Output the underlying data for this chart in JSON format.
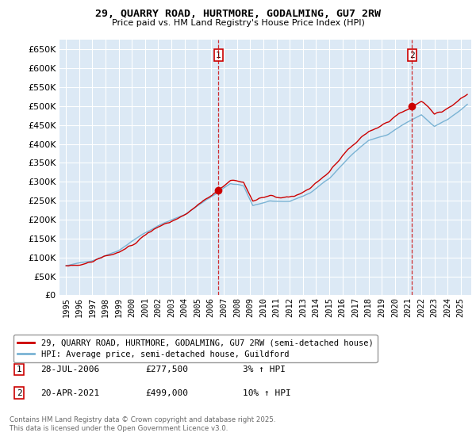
{
  "title_line1": "29, QUARRY ROAD, HURTMORE, GODALMING, GU7 2RW",
  "title_line2": "Price paid vs. HM Land Registry's House Price Index (HPI)",
  "ylim": [
    0,
    675000
  ],
  "yticks": [
    0,
    50000,
    100000,
    150000,
    200000,
    250000,
    300000,
    350000,
    400000,
    450000,
    500000,
    550000,
    600000,
    650000
  ],
  "xlim_start": 1994.5,
  "xlim_end": 2025.8,
  "bg_color": "#dce9f5",
  "grid_color": "#ffffff",
  "red_line_color": "#cc0000",
  "blue_line_color": "#7ab3d4",
  "marker1_x": 2006.57,
  "marker1_y": 277500,
  "marker2_x": 2021.3,
  "marker2_y": 499000,
  "legend_label_red": "29, QUARRY ROAD, HURTMORE, GODALMING, GU7 2RW (semi-detached house)",
  "legend_label_blue": "HPI: Average price, semi-detached house, Guildford",
  "annotation1_date": "28-JUL-2006",
  "annotation1_price": "£277,500",
  "annotation1_hpi": "3% ↑ HPI",
  "annotation2_date": "20-APR-2021",
  "annotation2_price": "£499,000",
  "annotation2_hpi": "10% ↑ HPI",
  "footer": "Contains HM Land Registry data © Crown copyright and database right 2025.\nThis data is licensed under the Open Government Licence v3.0."
}
